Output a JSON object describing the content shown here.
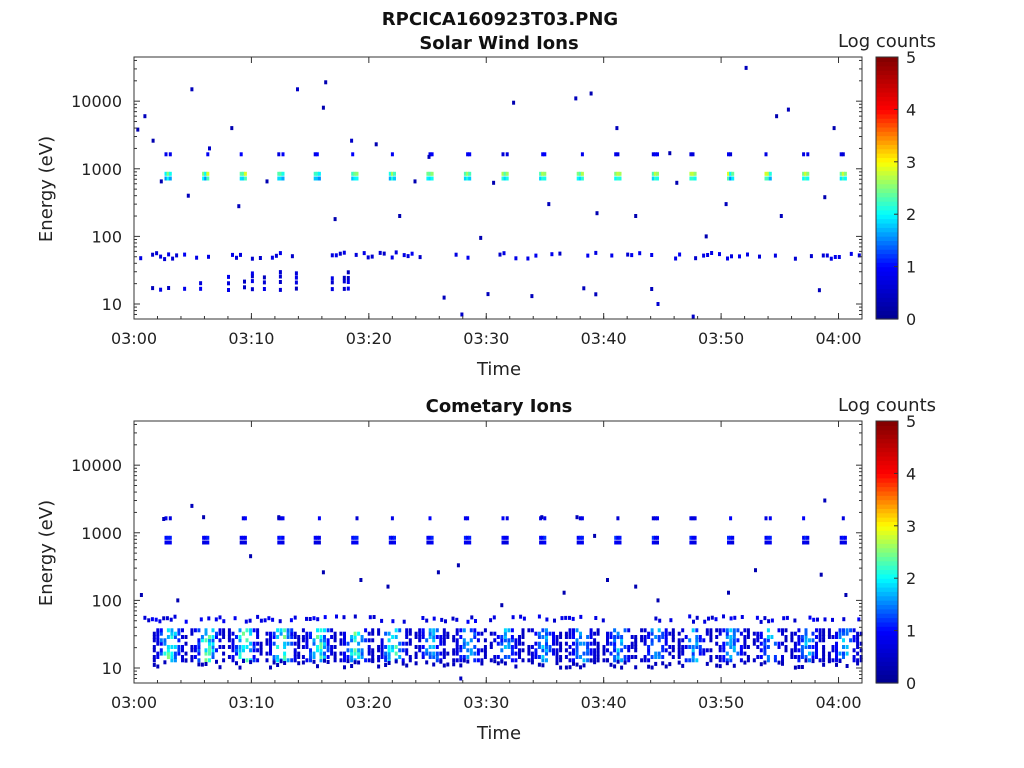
{
  "figure_title": "RPCICA160923T03.PNG",
  "colors": {
    "colormap": [
      "#00008f",
      "#0000ff",
      "#00ffff",
      "#ffff00",
      "#ff0000",
      "#800000"
    ],
    "axis": "#333333"
  },
  "chart_data": [
    {
      "type": "heatmap",
      "title": "Solar Wind Ions",
      "xlabel": "Time",
      "ylabel": "Energy (eV)",
      "colorbar_label": "Log counts",
      "x_ticks": [
        "03:00",
        "03:10",
        "03:20",
        "03:30",
        "03:40",
        "03:50",
        "04:00"
      ],
      "y_ticks": [
        "10",
        "100",
        "1000",
        "10000"
      ],
      "colorbar_ticks": [
        "0",
        "1",
        "2",
        "3",
        "4",
        "5"
      ],
      "xlim": [
        "03:00",
        "04:02"
      ],
      "ylim": [
        6,
        45000
      ],
      "yscale": "log",
      "zlim": [
        0,
        5
      ],
      "band_times_min": [
        2.6,
        5.8,
        9.0,
        12.2,
        15.3,
        18.5,
        21.7,
        24.9,
        28.1,
        31.3,
        34.5,
        37.7,
        40.9,
        44.1,
        47.3,
        50.5,
        53.7,
        56.9,
        60.1
      ],
      "band_energy_ev": 780,
      "band_peak_log_counts": 2.6,
      "low_energy_range_ev": [
        15,
        55
      ],
      "scatter_points": [
        {
          "t": 0.2,
          "e": 3800,
          "v": 0.3
        },
        {
          "t": 0.8,
          "e": 6000,
          "v": 0.4
        },
        {
          "t": 1.5,
          "e": 2600,
          "v": 0.3
        },
        {
          "t": 4.8,
          "e": 15000,
          "v": 0.4
        },
        {
          "t": 6.3,
          "e": 2000,
          "v": 0.5
        },
        {
          "t": 8.2,
          "e": 4000,
          "v": 0.3
        },
        {
          "t": 13.8,
          "e": 15000,
          "v": 0.5
        },
        {
          "t": 16.2,
          "e": 19000,
          "v": 0.3
        },
        {
          "t": 16.0,
          "e": 8000,
          "v": 0.3
        },
        {
          "t": 18.4,
          "e": 2600,
          "v": 0.5
        },
        {
          "t": 20.5,
          "e": 2300,
          "v": 0.3
        },
        {
          "t": 25.0,
          "e": 1500,
          "v": 0.4
        },
        {
          "t": 32.2,
          "e": 9500,
          "v": 0.3
        },
        {
          "t": 37.5,
          "e": 11000,
          "v": 0.4
        },
        {
          "t": 38.8,
          "e": 13000,
          "v": 0.3
        },
        {
          "t": 41.0,
          "e": 4000,
          "v": 0.4
        },
        {
          "t": 45.5,
          "e": 1700,
          "v": 0.3
        },
        {
          "t": 52.0,
          "e": 31000,
          "v": 0.4
        },
        {
          "t": 54.6,
          "e": 6000,
          "v": 0.3
        },
        {
          "t": 55.6,
          "e": 7500,
          "v": 0.4
        },
        {
          "t": 59.5,
          "e": 4000,
          "v": 0.3
        },
        {
          "t": 4.5,
          "e": 400,
          "v": 0.4
        },
        {
          "t": 8.8,
          "e": 280,
          "v": 0.4
        },
        {
          "t": 17.0,
          "e": 180,
          "v": 0.3
        },
        {
          "t": 22.5,
          "e": 200,
          "v": 0.3
        },
        {
          "t": 29.4,
          "e": 95,
          "v": 0.3
        },
        {
          "t": 35.2,
          "e": 300,
          "v": 0.4
        },
        {
          "t": 39.3,
          "e": 220,
          "v": 0.3
        },
        {
          "t": 42.6,
          "e": 200,
          "v": 0.3
        },
        {
          "t": 48.6,
          "e": 100,
          "v": 0.3
        },
        {
          "t": 50.3,
          "e": 300,
          "v": 0.4
        },
        {
          "t": 55.0,
          "e": 200,
          "v": 0.4
        },
        {
          "t": 58.7,
          "e": 380,
          "v": 0.3
        },
        {
          "t": 62.0,
          "e": 70,
          "v": 0.3
        },
        {
          "t": 2.2,
          "e": 650,
          "v": 0.3
        },
        {
          "t": 11.2,
          "e": 650,
          "v": 0.3
        },
        {
          "t": 23.8,
          "e": 650,
          "v": 0.3
        },
        {
          "t": 30.5,
          "e": 620,
          "v": 0.3
        },
        {
          "t": 46.1,
          "e": 620,
          "v": 0.3
        },
        {
          "t": 27.8,
          "e": 7,
          "v": 0.5
        },
        {
          "t": 47.5,
          "e": 6.5,
          "v": 0.5
        },
        {
          "t": 44.5,
          "e": 10,
          "v": 0.6
        }
      ]
    },
    {
      "type": "heatmap",
      "title": "Cometary Ions",
      "xlabel": "Time",
      "ylabel": "Energy (eV)",
      "colorbar_label": "Log counts",
      "x_ticks": [
        "03:00",
        "03:10",
        "03:20",
        "03:30",
        "03:40",
        "03:50",
        "04:00"
      ],
      "y_ticks": [
        "10",
        "100",
        "1000",
        "10000"
      ],
      "colorbar_ticks": [
        "0",
        "1",
        "2",
        "3",
        "4",
        "5"
      ],
      "xlim": [
        "03:00",
        "04:02"
      ],
      "ylim": [
        6,
        45000
      ],
      "yscale": "log",
      "zlim": [
        0,
        5
      ],
      "band_times_min": [
        2.6,
        5.8,
        9.0,
        12.2,
        15.3,
        18.5,
        21.7,
        24.9,
        28.1,
        31.3,
        34.5,
        37.7,
        40.9,
        44.1,
        47.3,
        50.5,
        53.7,
        56.9,
        60.1
      ],
      "band_energy_ev": 780,
      "band_peak_log_counts": 1.1,
      "low_energy_range_ev": [
        13,
        40
      ],
      "scatter_points": [
        {
          "t": 0.5,
          "e": 120,
          "v": 0.3
        },
        {
          "t": 2.4,
          "e": 1600,
          "v": 0.4
        },
        {
          "t": 3.6,
          "e": 100,
          "v": 0.3
        },
        {
          "t": 4.8,
          "e": 2500,
          "v": 0.4
        },
        {
          "t": 5.8,
          "e": 1700,
          "v": 0.3
        },
        {
          "t": 9.8,
          "e": 450,
          "v": 0.3
        },
        {
          "t": 12.2,
          "e": 1700,
          "v": 0.4
        },
        {
          "t": 16.0,
          "e": 260,
          "v": 0.3
        },
        {
          "t": 19.2,
          "e": 200,
          "v": 0.3
        },
        {
          "t": 21.5,
          "e": 160,
          "v": 0.3
        },
        {
          "t": 25.8,
          "e": 260,
          "v": 0.3
        },
        {
          "t": 27.5,
          "e": 330,
          "v": 0.3
        },
        {
          "t": 31.2,
          "e": 85,
          "v": 0.3
        },
        {
          "t": 34.6,
          "e": 1700,
          "v": 0.4
        },
        {
          "t": 37.6,
          "e": 1700,
          "v": 0.4
        },
        {
          "t": 40.2,
          "e": 200,
          "v": 0.3
        },
        {
          "t": 39.1,
          "e": 900,
          "v": 0.3
        },
        {
          "t": 42.6,
          "e": 160,
          "v": 0.3
        },
        {
          "t": 50.5,
          "e": 130,
          "v": 0.3
        },
        {
          "t": 52.8,
          "e": 280,
          "v": 0.3
        },
        {
          "t": 58.7,
          "e": 3000,
          "v": 0.4
        },
        {
          "t": 58.4,
          "e": 240,
          "v": 0.3
        },
        {
          "t": 60.5,
          "e": 120,
          "v": 0.3
        },
        {
          "t": 27.7,
          "e": 7,
          "v": 0.4
        },
        {
          "t": 36.5,
          "e": 130,
          "v": 0.3
        },
        {
          "t": 44.5,
          "e": 100,
          "v": 0.3
        }
      ]
    }
  ]
}
